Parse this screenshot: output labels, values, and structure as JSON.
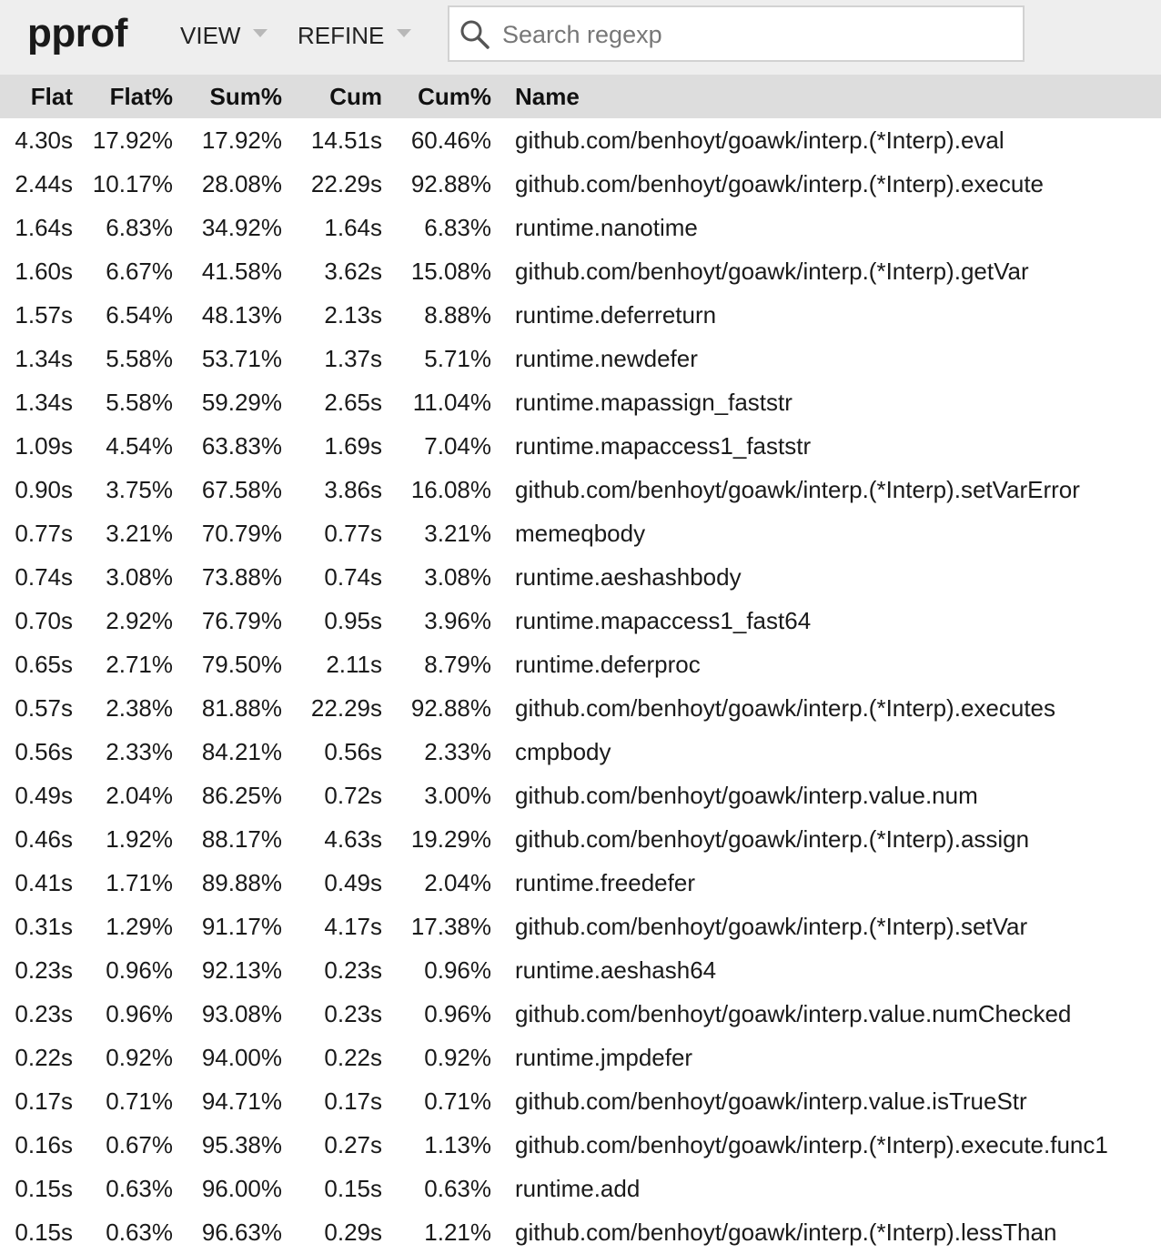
{
  "header": {
    "logo": "pprof",
    "menus": [
      {
        "label": "VIEW"
      },
      {
        "label": "REFINE"
      }
    ],
    "search": {
      "placeholder": "Search regexp",
      "value": ""
    }
  },
  "table": {
    "columns": [
      "Flat",
      "Flat%",
      "Sum%",
      "Cum",
      "Cum%",
      "Name"
    ],
    "rows": [
      [
        "4.30s",
        "17.92%",
        "17.92%",
        "14.51s",
        "60.46%",
        "github.com/benhoyt/goawk/interp.(*Interp).eval"
      ],
      [
        "2.44s",
        "10.17%",
        "28.08%",
        "22.29s",
        "92.88%",
        "github.com/benhoyt/goawk/interp.(*Interp).execute"
      ],
      [
        "1.64s",
        "6.83%",
        "34.92%",
        "1.64s",
        "6.83%",
        "runtime.nanotime"
      ],
      [
        "1.60s",
        "6.67%",
        "41.58%",
        "3.62s",
        "15.08%",
        "github.com/benhoyt/goawk/interp.(*Interp).getVar"
      ],
      [
        "1.57s",
        "6.54%",
        "48.13%",
        "2.13s",
        "8.88%",
        "runtime.deferreturn"
      ],
      [
        "1.34s",
        "5.58%",
        "53.71%",
        "1.37s",
        "5.71%",
        "runtime.newdefer"
      ],
      [
        "1.34s",
        "5.58%",
        "59.29%",
        "2.65s",
        "11.04%",
        "runtime.mapassign_faststr"
      ],
      [
        "1.09s",
        "4.54%",
        "63.83%",
        "1.69s",
        "7.04%",
        "runtime.mapaccess1_faststr"
      ],
      [
        "0.90s",
        "3.75%",
        "67.58%",
        "3.86s",
        "16.08%",
        "github.com/benhoyt/goawk/interp.(*Interp).setVarError"
      ],
      [
        "0.77s",
        "3.21%",
        "70.79%",
        "0.77s",
        "3.21%",
        "memeqbody"
      ],
      [
        "0.74s",
        "3.08%",
        "73.88%",
        "0.74s",
        "3.08%",
        "runtime.aeshashbody"
      ],
      [
        "0.70s",
        "2.92%",
        "76.79%",
        "0.95s",
        "3.96%",
        "runtime.mapaccess1_fast64"
      ],
      [
        "0.65s",
        "2.71%",
        "79.50%",
        "2.11s",
        "8.79%",
        "runtime.deferproc"
      ],
      [
        "0.57s",
        "2.38%",
        "81.88%",
        "22.29s",
        "92.88%",
        "github.com/benhoyt/goawk/interp.(*Interp).executes"
      ],
      [
        "0.56s",
        "2.33%",
        "84.21%",
        "0.56s",
        "2.33%",
        "cmpbody"
      ],
      [
        "0.49s",
        "2.04%",
        "86.25%",
        "0.72s",
        "3.00%",
        "github.com/benhoyt/goawk/interp.value.num"
      ],
      [
        "0.46s",
        "1.92%",
        "88.17%",
        "4.63s",
        "19.29%",
        "github.com/benhoyt/goawk/interp.(*Interp).assign"
      ],
      [
        "0.41s",
        "1.71%",
        "89.88%",
        "0.49s",
        "2.04%",
        "runtime.freedefer"
      ],
      [
        "0.31s",
        "1.29%",
        "91.17%",
        "4.17s",
        "17.38%",
        "github.com/benhoyt/goawk/interp.(*Interp).setVar"
      ],
      [
        "0.23s",
        "0.96%",
        "92.13%",
        "0.23s",
        "0.96%",
        "runtime.aeshash64"
      ],
      [
        "0.23s",
        "0.96%",
        "93.08%",
        "0.23s",
        "0.96%",
        "github.com/benhoyt/goawk/interp.value.numChecked"
      ],
      [
        "0.22s",
        "0.92%",
        "94.00%",
        "0.22s",
        "0.92%",
        "runtime.jmpdefer"
      ],
      [
        "0.17s",
        "0.71%",
        "94.71%",
        "0.17s",
        "0.71%",
        "github.com/benhoyt/goawk/interp.value.isTrueStr"
      ],
      [
        "0.16s",
        "0.67%",
        "95.38%",
        "0.27s",
        "1.13%",
        "github.com/benhoyt/goawk/interp.(*Interp).execute.func1"
      ],
      [
        "0.15s",
        "0.63%",
        "96.00%",
        "0.15s",
        "0.63%",
        "runtime.add"
      ],
      [
        "0.15s",
        "0.63%",
        "96.63%",
        "0.29s",
        "1.21%",
        "github.com/benhoyt/goawk/interp.(*Interp).lessThan"
      ]
    ]
  }
}
